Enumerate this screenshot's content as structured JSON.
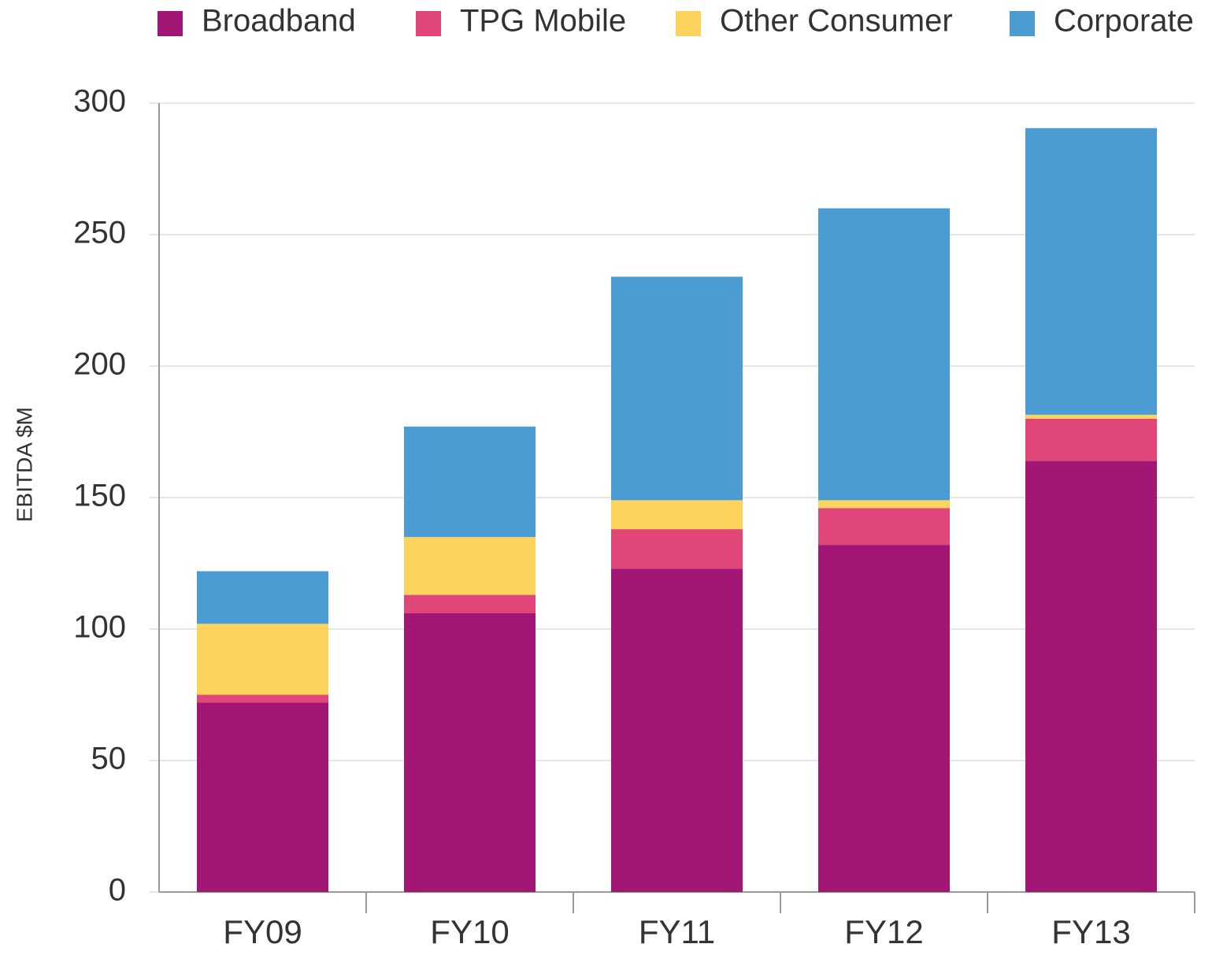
{
  "chart_data": {
    "type": "stacked_bar",
    "y_label": "EBITDA  $M",
    "categories": [
      "FY09",
      "FY10",
      "FY11",
      "FY12",
      "FY13"
    ],
    "series": [
      {
        "name": "Broadband",
        "color": "#a21675",
        "values": [
          72,
          106,
          123,
          132,
          164
        ]
      },
      {
        "name": "TPG Mobile",
        "color": "#e04677",
        "values": [
          3,
          7,
          15,
          14,
          16
        ]
      },
      {
        "name": "Other Consumer",
        "color": "#fbd35d",
        "values": [
          27,
          22,
          11,
          3,
          1.5
        ]
      },
      {
        "name": "Corporate",
        "color": "#4a9cd3",
        "values": [
          20,
          42,
          85,
          111,
          109
        ]
      }
    ],
    "ylim": [
      0,
      300
    ],
    "yticks": [
      0,
      50,
      100,
      150,
      200,
      250,
      300
    ],
    "grid": true,
    "legend": "top"
  }
}
